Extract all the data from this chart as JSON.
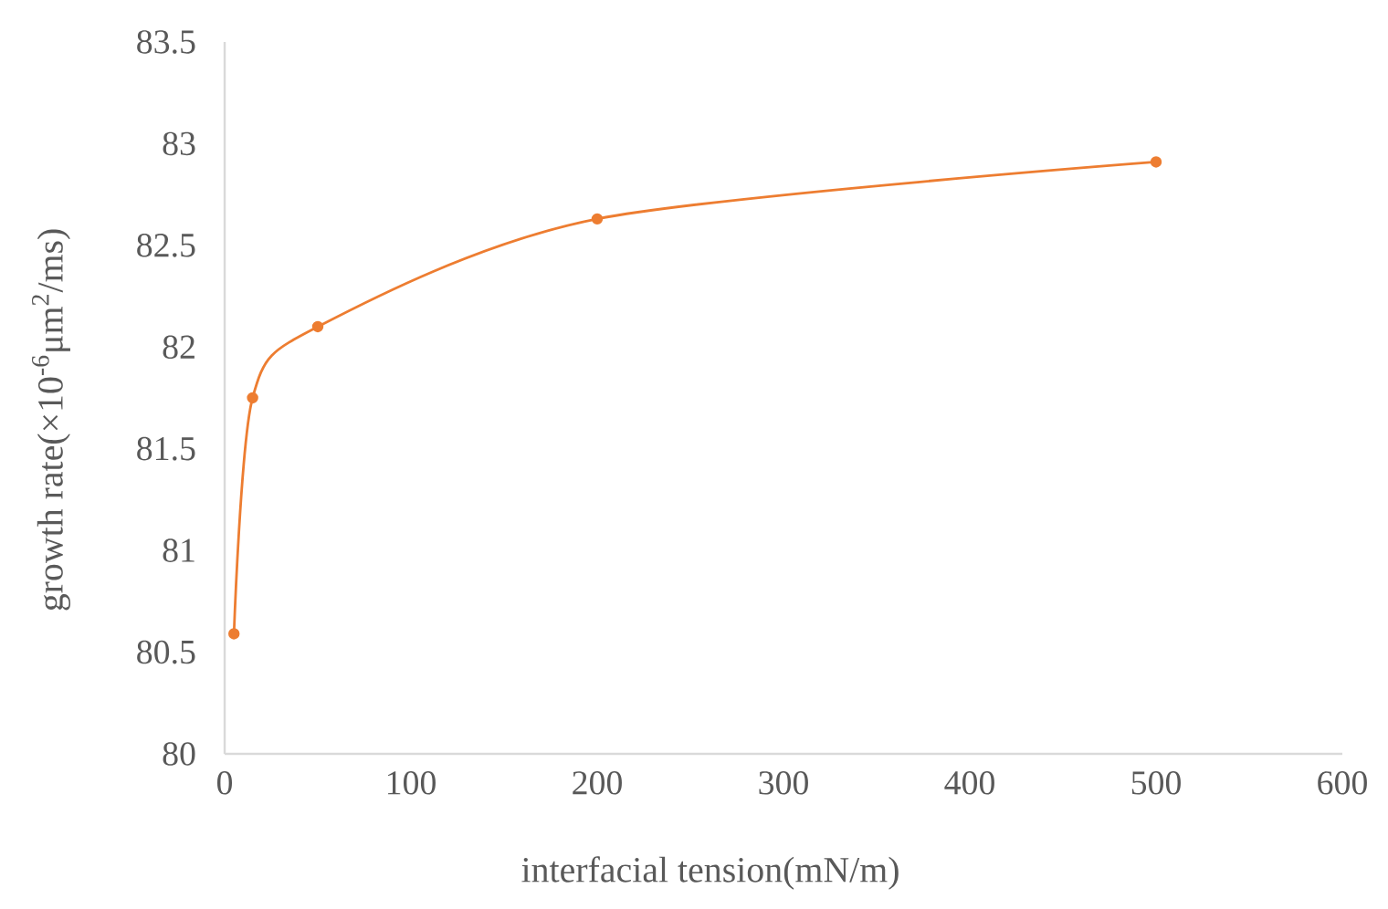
{
  "chart_data": {
    "type": "line",
    "xlabel": "interfacial tension(mN/m)",
    "ylabel": "growth rate(×10$^{-6}$μm$^{2}$/ms)",
    "x": [
      5,
      15,
      50,
      200,
      500
    ],
    "values": [
      80.59,
      81.75,
      82.1,
      82.63,
      82.91
    ],
    "color": "#ed7d31",
    "marker": "circle",
    "line_style": "solid",
    "xlim": [
      0,
      600
    ],
    "ylim": [
      80,
      83.5
    ],
    "xticks": [
      0,
      100,
      200,
      300,
      400,
      500,
      600
    ],
    "yticks": [
      80,
      80.5,
      81,
      81.5,
      82,
      82.5,
      83,
      83.5
    ]
  }
}
